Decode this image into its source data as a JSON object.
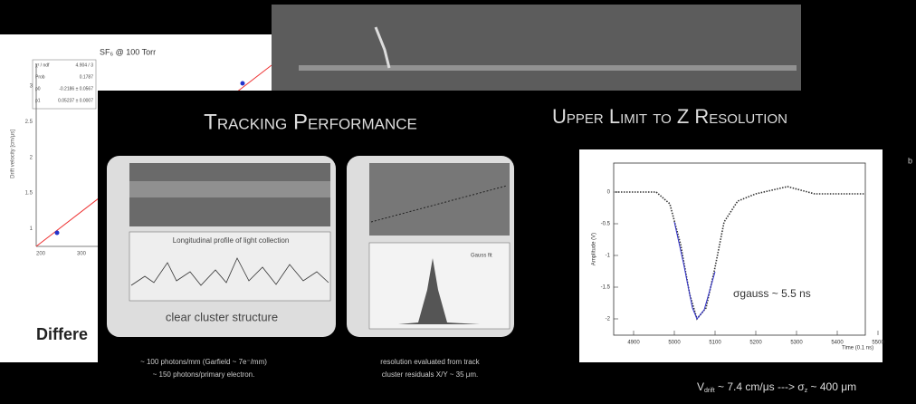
{
  "left_slide": {
    "plot_title": "SF₆ @ 100 Torr",
    "y_axis_label": "Drift velocity [cm/μs]",
    "stats": [
      [
        "χ² / ndf",
        "4.904 / 3"
      ],
      [
        "Prob",
        "0.1787"
      ],
      [
        "p0",
        "-0.2186 ± 0.0567"
      ],
      [
        "p1",
        "0.05237 ± 0.0007"
      ]
    ],
    "yticks": [
      "3",
      "2.5",
      "2",
      "1.5",
      "1"
    ],
    "xticks": [
      "200",
      "300"
    ],
    "footer": "Differe"
  },
  "track_slide": {
    "title": "Tracking Performance",
    "left_panel": {
      "plot_label": "Longitudinal profile of light collection",
      "caption": "clear cluster structure"
    },
    "right_panel": {
      "legend": "Gauss fit"
    },
    "notes": [
      "~ 100 photons/mm (Garfield ~ 7e⁻/mm)",
      "~ 150 photons/primary electron.",
      "resolution evaluated from track",
      "cluster residuals X/Y ~ 35 μm."
    ]
  },
  "z_slide": {
    "title": "Upper Limit to Z Resolution",
    "plot": {
      "y_label": "Amplitude (V)",
      "x_label": "Time (0.1 ns)",
      "xticks": [
        "4900",
        "5000",
        "5100",
        "5200",
        "5300",
        "5400",
        "5500"
      ],
      "yticks": [
        "0",
        "-0.5",
        "-1",
        "-1.5",
        "-2"
      ],
      "annotation": "σgauss ~ 5.5 ns"
    },
    "formula": {
      "v": "V",
      "v_sub": "drift",
      "middle": " ~ 7.4 cm/μs ---> σ",
      "s_sub": "z",
      "end": " ~ 400 μm"
    },
    "edge_text": "b"
  }
}
